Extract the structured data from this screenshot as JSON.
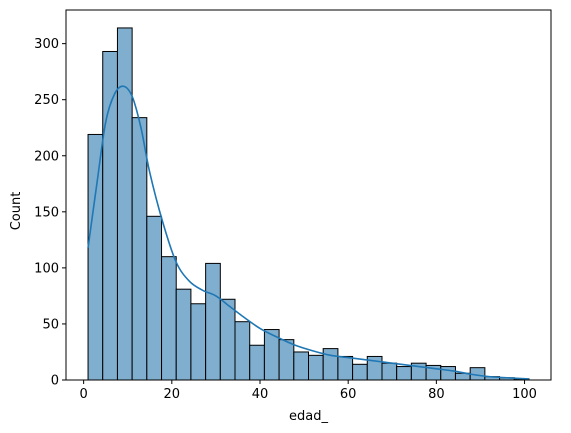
{
  "chart_data": {
    "type": "bar",
    "subtype": "histogram-with-kde",
    "title": "",
    "xlabel": "edad_",
    "ylabel": "Count",
    "xlim": [
      -4,
      106
    ],
    "ylim": [
      0,
      330
    ],
    "x_ticks": [
      0,
      20,
      40,
      60,
      80,
      100
    ],
    "y_ticks": [
      0,
      50,
      100,
      150,
      200,
      250,
      300
    ],
    "grid": false,
    "legend": "none",
    "bin_width": 3.33,
    "bin_start": 1,
    "bins": [
      {
        "x0": 1.0,
        "x1": 4.33,
        "count": 219
      },
      {
        "x0": 4.33,
        "x1": 7.67,
        "count": 293
      },
      {
        "x0": 7.67,
        "x1": 11.0,
        "count": 314
      },
      {
        "x0": 11.0,
        "x1": 14.33,
        "count": 234
      },
      {
        "x0": 14.33,
        "x1": 17.67,
        "count": 146
      },
      {
        "x0": 17.67,
        "x1": 21.0,
        "count": 110
      },
      {
        "x0": 21.0,
        "x1": 24.33,
        "count": 81
      },
      {
        "x0": 24.33,
        "x1": 27.67,
        "count": 68
      },
      {
        "x0": 27.67,
        "x1": 31.0,
        "count": 104
      },
      {
        "x0": 31.0,
        "x1": 34.33,
        "count": 72
      },
      {
        "x0": 34.33,
        "x1": 37.67,
        "count": 52
      },
      {
        "x0": 37.67,
        "x1": 41.0,
        "count": 31
      },
      {
        "x0": 41.0,
        "x1": 44.33,
        "count": 45
      },
      {
        "x0": 44.33,
        "x1": 47.67,
        "count": 36
      },
      {
        "x0": 47.67,
        "x1": 51.0,
        "count": 25
      },
      {
        "x0": 51.0,
        "x1": 54.33,
        "count": 22
      },
      {
        "x0": 54.33,
        "x1": 57.67,
        "count": 28
      },
      {
        "x0": 57.67,
        "x1": 61.0,
        "count": 21
      },
      {
        "x0": 61.0,
        "x1": 64.33,
        "count": 14
      },
      {
        "x0": 64.33,
        "x1": 67.67,
        "count": 21
      },
      {
        "x0": 67.67,
        "x1": 71.0,
        "count": 15
      },
      {
        "x0": 71.0,
        "x1": 74.33,
        "count": 12
      },
      {
        "x0": 74.33,
        "x1": 77.67,
        "count": 15
      },
      {
        "x0": 77.67,
        "x1": 81.0,
        "count": 13
      },
      {
        "x0": 81.0,
        "x1": 84.33,
        "count": 12
      },
      {
        "x0": 84.33,
        "x1": 87.67,
        "count": 6
      },
      {
        "x0": 87.67,
        "x1": 91.0,
        "count": 11
      },
      {
        "x0": 91.0,
        "x1": 94.33,
        "count": 3
      },
      {
        "x0": 94.33,
        "x1": 97.67,
        "count": 2
      },
      {
        "x0": 97.67,
        "x1": 101.0,
        "count": 1
      }
    ],
    "kde_curve": {
      "x": [
        1,
        3,
        5,
        7,
        9,
        11,
        13,
        15,
        18,
        21,
        24,
        27,
        30,
        33,
        36,
        40,
        44,
        48,
        52,
        56,
        60,
        64,
        68,
        72,
        76,
        80,
        84,
        88,
        92,
        96,
        101
      ],
      "y": [
        118,
        175,
        230,
        255,
        262,
        253,
        225,
        185,
        140,
        105,
        88,
        80,
        75,
        66,
        57,
        46,
        38,
        31,
        26,
        22,
        20,
        18,
        16,
        14,
        12,
        10,
        8,
        5,
        3,
        2,
        1
      ]
    },
    "colors": {
      "bar_fill": "#7faecf",
      "bar_edge": "#000000",
      "kde_line": "#1f77b4",
      "axes": "#000000"
    }
  }
}
